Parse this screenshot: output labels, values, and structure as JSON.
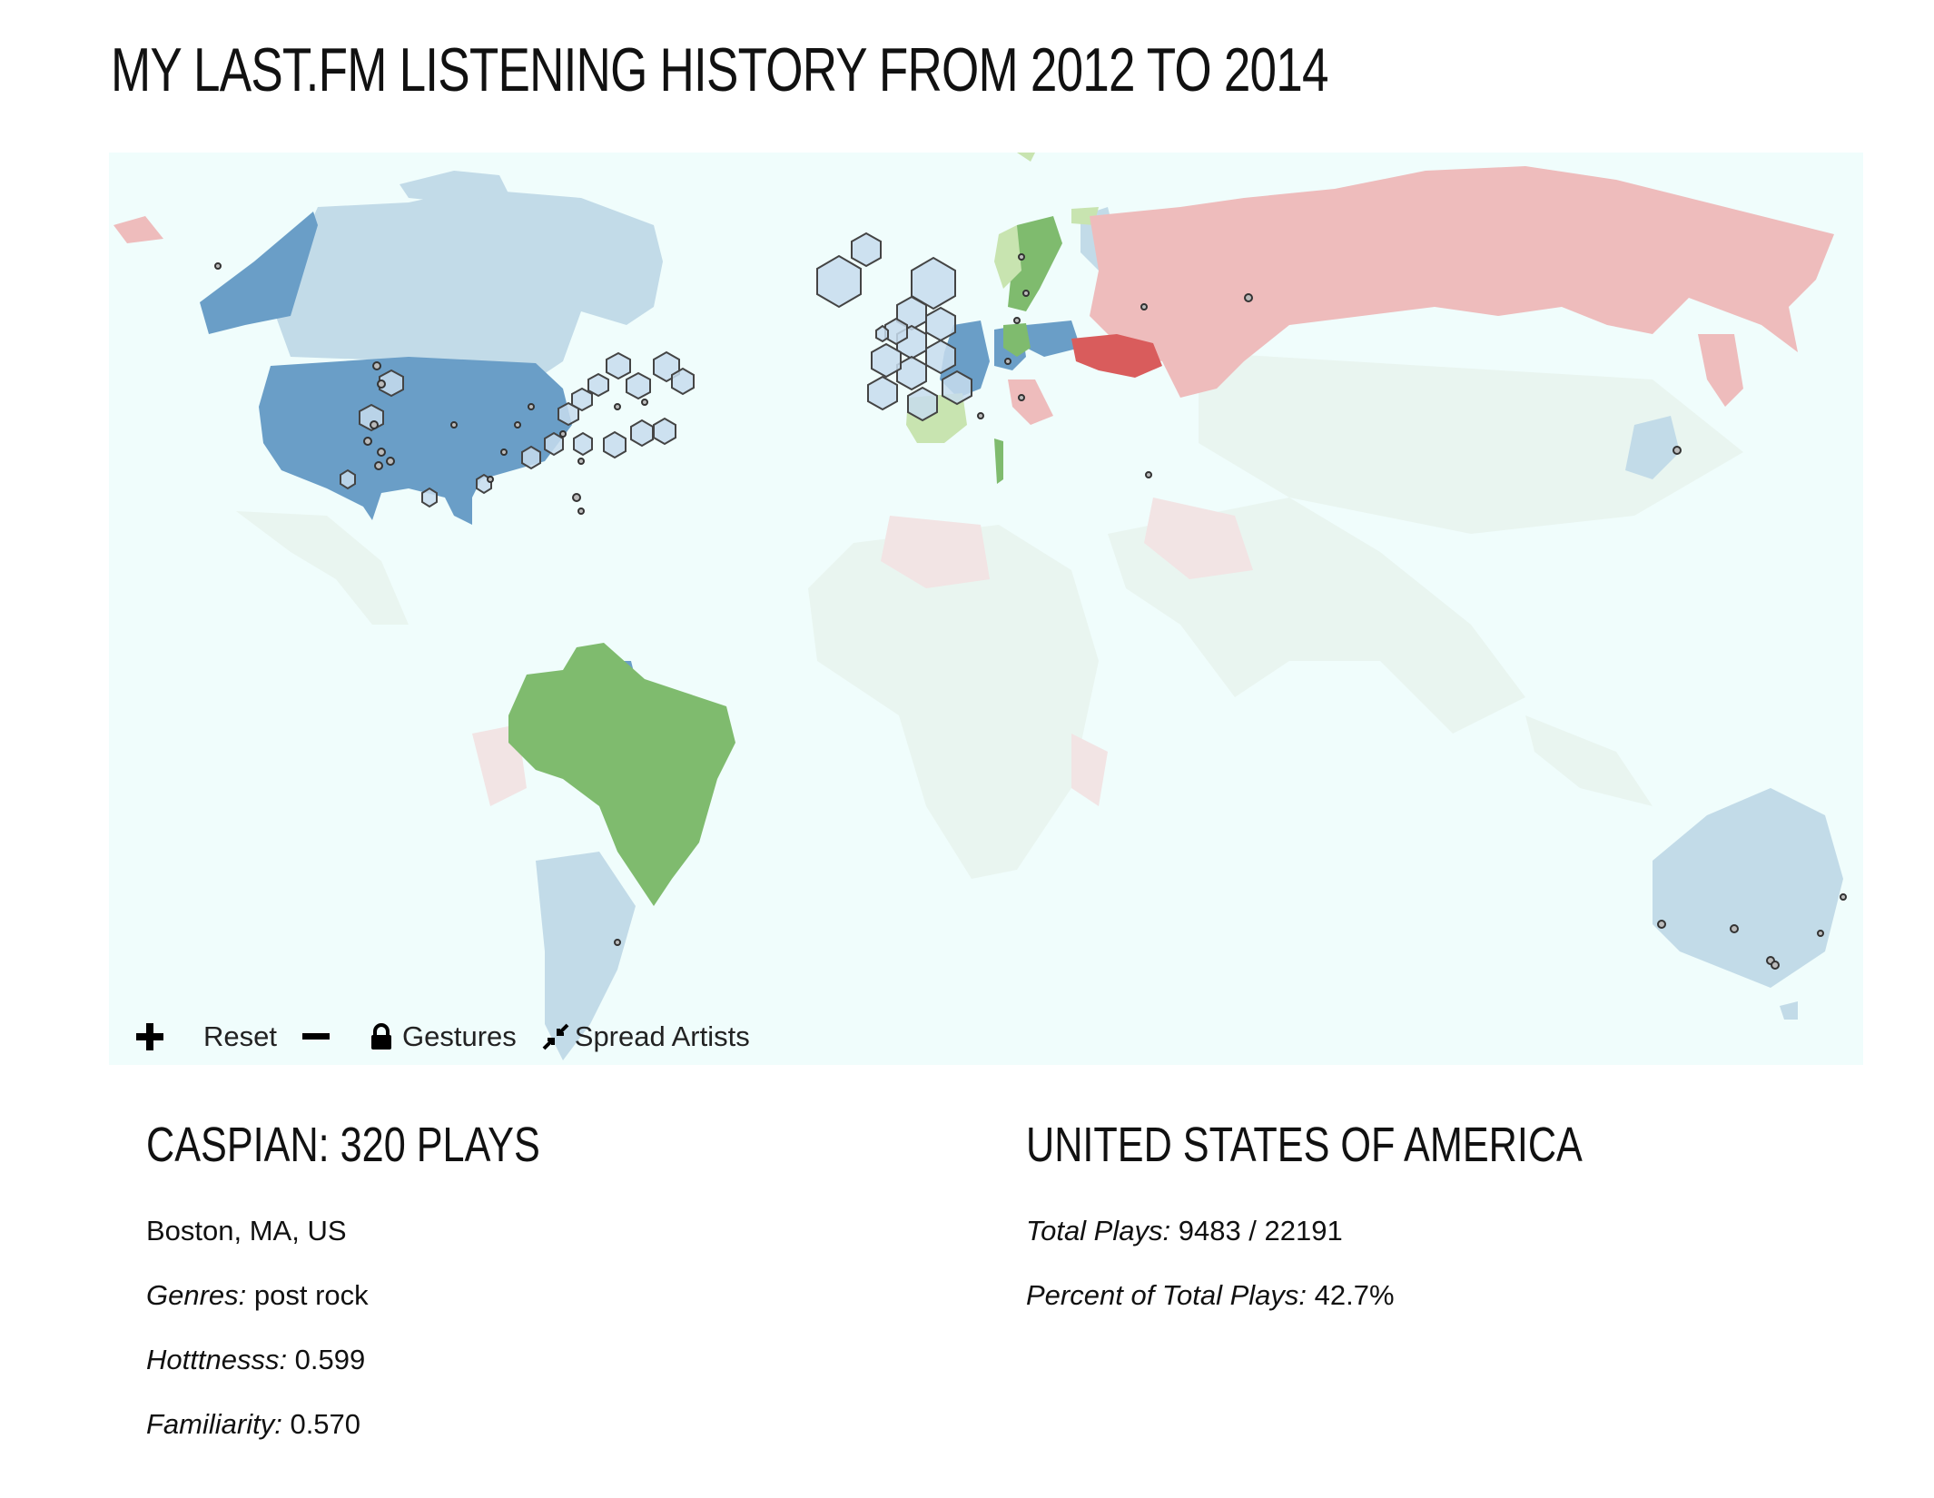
{
  "page": {
    "title": "MY LAST.FM LISTENING HISTORY FROM 2012 TO 2014"
  },
  "map": {
    "ocean_color": "#f0fdfc",
    "controls": {
      "zoom_in_icon": "plus-icon",
      "reset_label": "Reset",
      "zoom_out_icon": "minus-icon",
      "gestures_icon": "lock-icon",
      "gestures_label": "Gestures",
      "spread_icon": "compress-arrows-icon",
      "spread_label": "Spread Artists"
    },
    "legend_colors": {
      "dark_blue": "#6a9ec7",
      "light_blue": "#c2dbe8",
      "green": "#7fbb6e",
      "light_green": "#c8e4b0",
      "pink": "#eebcbc",
      "red": "#d95c5c",
      "faint": "#eaf3f2"
    }
  },
  "artist": {
    "heading": "CASPIAN: 320 PLAYS",
    "location": "Boston, MA, US",
    "genres_label": "Genres:",
    "genres_value": " post rock",
    "hotttnesss_label": "Hotttnesss:",
    "hotttnesss_value": " 0.599",
    "familiarity_label": "Familiarity:",
    "familiarity_value": " 0.570"
  },
  "country": {
    "heading": "UNITED STATES OF AMERICA",
    "total_plays_label": "Total Plays:",
    "total_plays_value": " 9483 / 22191",
    "percent_label": "Percent of Total Plays:",
    "percent_value": " 42.7%"
  }
}
